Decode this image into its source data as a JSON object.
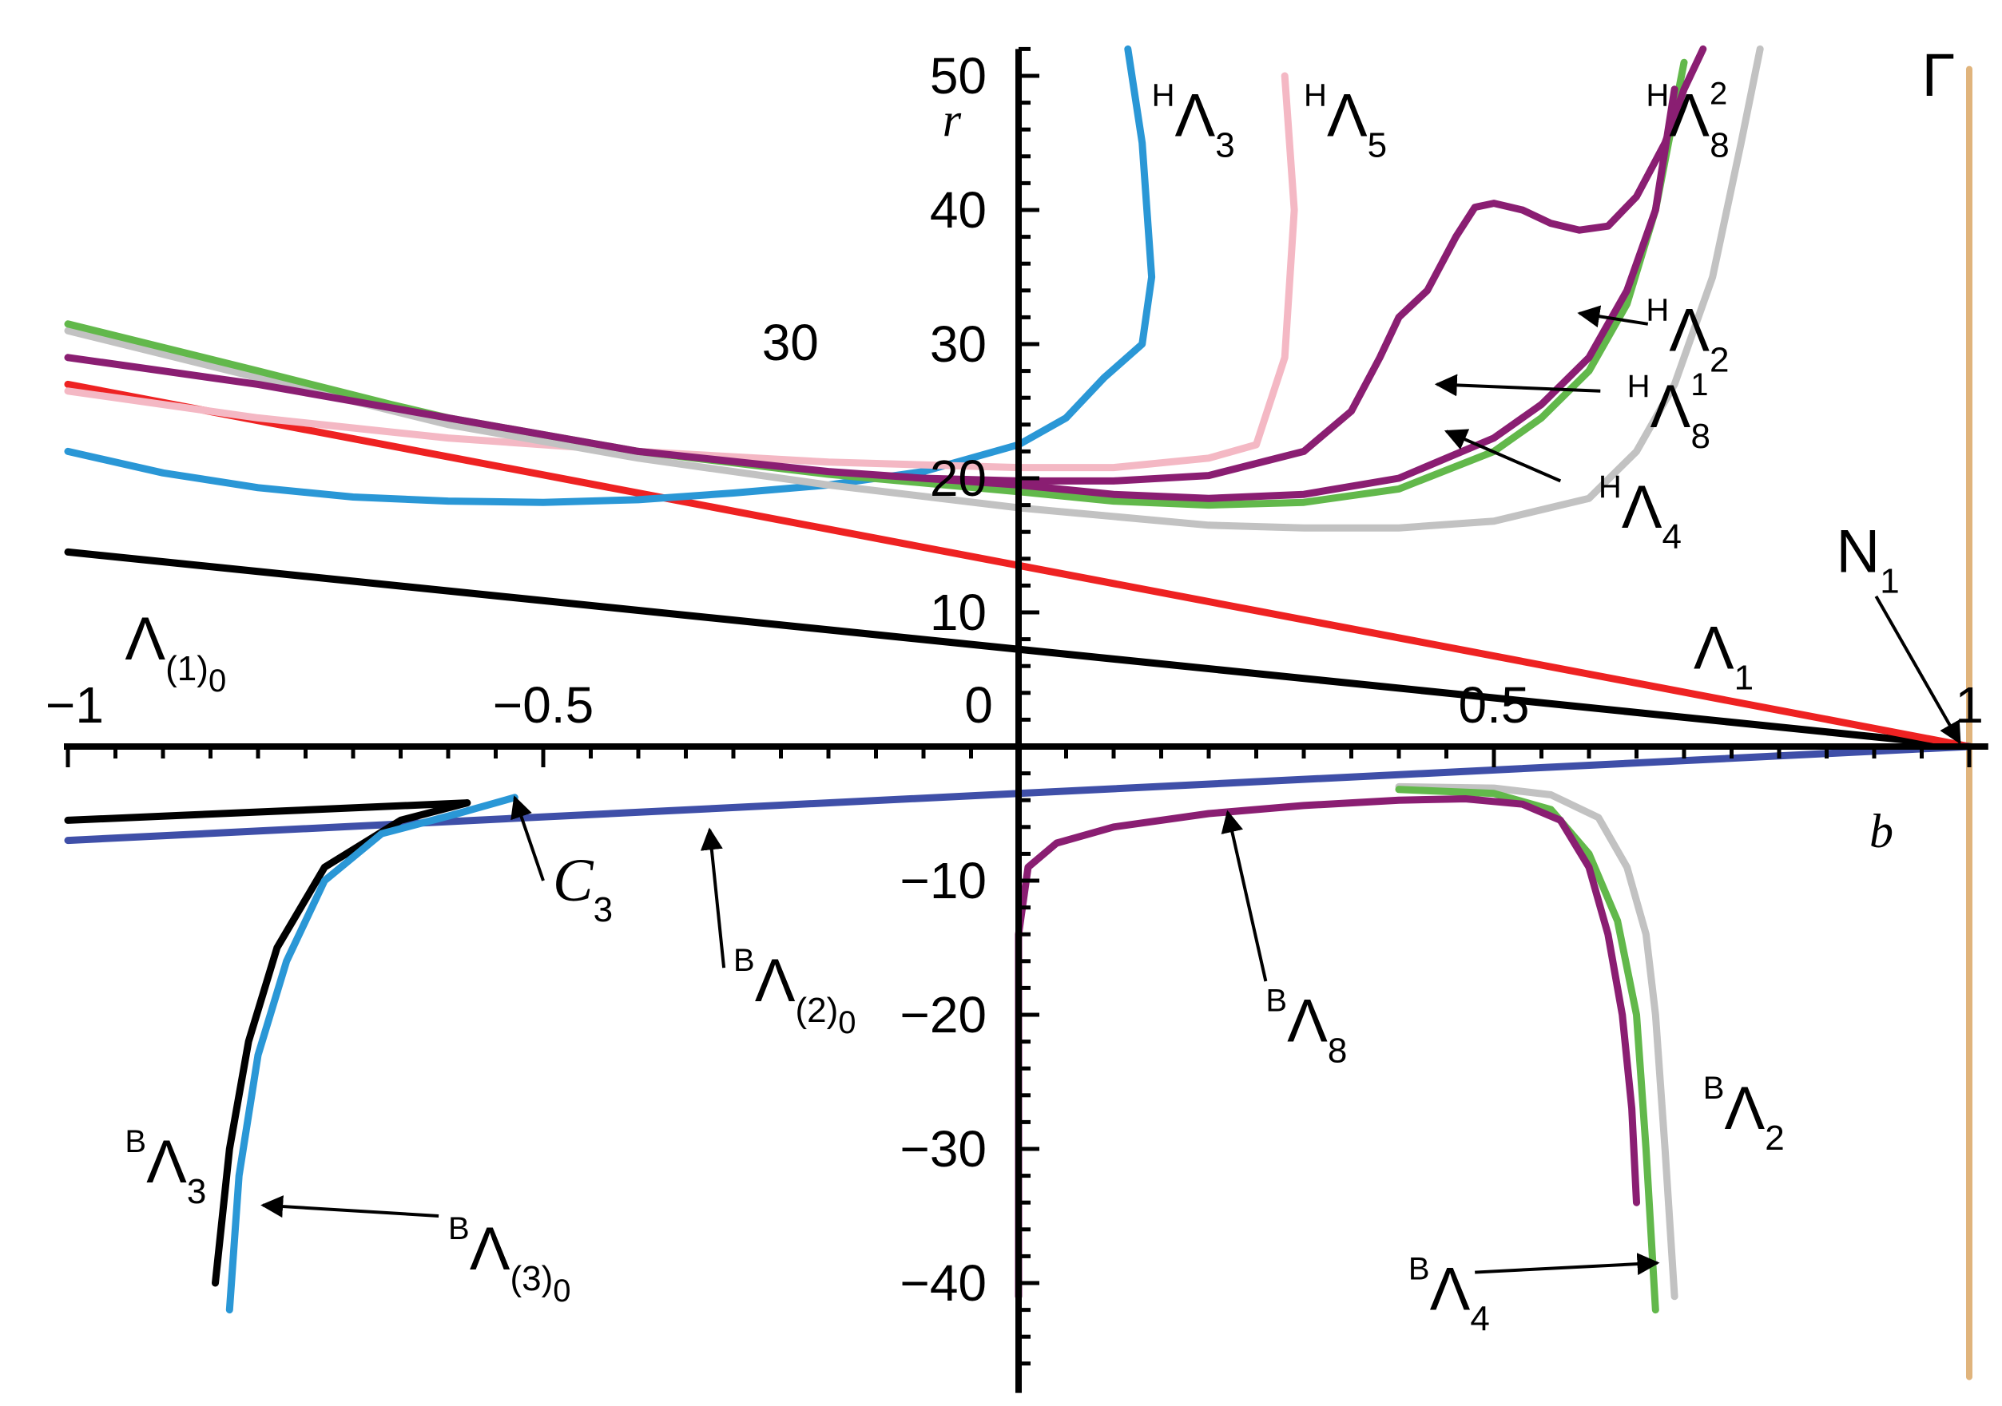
{
  "chart_data": {
    "type": "line",
    "xlabel": "b",
    "ylabel": "r",
    "xlim": [
      -1,
      1.02
    ],
    "ylim": [
      -47,
      52
    ],
    "x_ticks": [
      {
        "v": -1,
        "t": "-1"
      },
      {
        "v": -0.5,
        "t": "-0.5"
      },
      {
        "v": 0,
        "t": "0"
      },
      {
        "v": 0.5,
        "t": "0.5"
      },
      {
        "v": 1,
        "t": "1"
      }
    ],
    "y_ticks": [
      {
        "v": -40,
        "t": "-40"
      },
      {
        "v": -30,
        "t": "-30"
      },
      {
        "v": -20,
        "t": "-20"
      },
      {
        "v": -10,
        "t": "-10"
      },
      {
        "v": 10,
        "t": "10"
      },
      {
        "v": 20,
        "t": "20"
      },
      {
        "v": 30,
        "t": "30"
      },
      {
        "v": 40,
        "t": "40"
      },
      {
        "v": 50,
        "t": "50"
      }
    ],
    "colors": {
      "black": "#000000",
      "red": "#ee2222",
      "blue": "#2a97d6",
      "pink": "#f4b8c4",
      "green": "#62b84b",
      "gray": "#c2c2c2",
      "purple": "#8a1e72",
      "navy": "#3f4fa8",
      "tan": "#e0b47c"
    },
    "series": [
      {
        "color": "black",
        "points": [
          [
            -1,
            14.5
          ],
          [
            1,
            0
          ]
        ]
      },
      {
        "color": "red",
        "points": [
          [
            -1,
            27
          ],
          [
            1,
            0
          ]
        ]
      },
      {
        "color": "navy",
        "points": [
          [
            -1,
            -7
          ],
          [
            1,
            0
          ]
        ]
      },
      {
        "color": "tan",
        "points": [
          [
            1,
            50.5
          ],
          [
            1,
            -47
          ]
        ]
      },
      {
        "color": "blue",
        "points": [
          [
            -1,
            22
          ],
          [
            -0.9,
            20.4
          ],
          [
            -0.8,
            19.3
          ],
          [
            -0.7,
            18.6
          ],
          [
            -0.6,
            18.3
          ],
          [
            -0.5,
            18.2
          ],
          [
            -0.4,
            18.4
          ],
          [
            -0.3,
            18.9
          ],
          [
            -0.2,
            19.5
          ],
          [
            -0.1,
            20.5
          ],
          [
            0,
            22.5
          ],
          [
            0.05,
            24.5
          ],
          [
            0.09,
            27.5
          ],
          [
            0.13,
            30
          ],
          [
            0.14,
            35
          ],
          [
            0.13,
            45
          ],
          [
            0.115,
            52
          ]
        ]
      },
      {
        "color": "pink",
        "points": [
          [
            -1,
            26.5
          ],
          [
            -0.8,
            24.5
          ],
          [
            -0.6,
            23
          ],
          [
            -0.4,
            22
          ],
          [
            -0.2,
            21.2
          ],
          [
            0,
            20.8
          ],
          [
            0.1,
            20.8
          ],
          [
            0.2,
            21.5
          ],
          [
            0.25,
            22.5
          ],
          [
            0.28,
            29
          ],
          [
            0.29,
            40
          ],
          [
            0.28,
            50
          ]
        ]
      },
      {
        "color": "gray",
        "points": [
          [
            -1,
            31
          ],
          [
            -0.8,
            27.5
          ],
          [
            -0.6,
            24
          ],
          [
            -0.4,
            21.5
          ],
          [
            -0.2,
            19.5
          ],
          [
            0,
            17.8
          ],
          [
            0.2,
            16.5
          ],
          [
            0.3,
            16.3
          ],
          [
            0.4,
            16.3
          ],
          [
            0.5,
            16.8
          ],
          [
            0.6,
            18.5
          ],
          [
            0.65,
            22
          ],
          [
            0.69,
            27
          ],
          [
            0.73,
            35
          ],
          [
            0.76,
            45
          ],
          [
            0.78,
            52
          ]
        ]
      },
      {
        "color": "green",
        "points": [
          [
            -1,
            31.5
          ],
          [
            -0.8,
            28
          ],
          [
            -0.66,
            25.5
          ],
          [
            -0.6,
            24.5
          ],
          [
            -0.4,
            22
          ],
          [
            -0.2,
            20.3
          ],
          [
            0,
            19
          ],
          [
            0.1,
            18.3
          ],
          [
            0.2,
            18
          ],
          [
            0.3,
            18.2
          ],
          [
            0.4,
            19.2
          ],
          [
            0.5,
            22
          ],
          [
            0.55,
            24.5
          ],
          [
            0.6,
            28
          ],
          [
            0.64,
            33
          ],
          [
            0.67,
            40
          ],
          [
            0.7,
            51
          ]
        ]
      },
      {
        "color": "purple",
        "points": [
          [
            -1,
            29
          ],
          [
            -0.8,
            27
          ],
          [
            -0.6,
            24.5
          ],
          [
            -0.4,
            22
          ],
          [
            -0.2,
            20.5
          ],
          [
            0,
            19.5
          ],
          [
            0.1,
            18.8
          ],
          [
            0.2,
            18.5
          ],
          [
            0.3,
            18.8
          ],
          [
            0.4,
            20
          ],
          [
            0.5,
            23
          ],
          [
            0.55,
            25.5
          ],
          [
            0.6,
            29
          ],
          [
            0.64,
            34
          ],
          [
            0.67,
            40
          ],
          [
            0.69,
            49
          ]
        ]
      },
      {
        "color": "purple",
        "points": [
          [
            -0.1,
            20
          ],
          [
            0,
            19.8
          ],
          [
            0.1,
            19.8
          ],
          [
            0.2,
            20.2
          ],
          [
            0.3,
            22
          ],
          [
            0.35,
            25
          ],
          [
            0.38,
            29
          ],
          [
            0.4,
            32
          ],
          [
            0.43,
            34
          ],
          [
            0.46,
            38
          ],
          [
            0.48,
            40.2
          ],
          [
            0.5,
            40.5
          ],
          [
            0.53,
            40
          ],
          [
            0.56,
            39
          ],
          [
            0.59,
            38.5
          ],
          [
            0.62,
            38.8
          ],
          [
            0.65,
            41
          ],
          [
            0.68,
            45
          ],
          [
            0.7,
            49
          ],
          [
            0.72,
            52
          ]
        ]
      },
      {
        "color": "black",
        "points": [
          [
            -1,
            -5.5
          ],
          [
            -0.58,
            -4.2
          ]
        ]
      },
      {
        "color": "black",
        "points": [
          [
            -0.58,
            -4.2
          ],
          [
            -0.65,
            -5.5
          ],
          [
            -0.73,
            -9
          ],
          [
            -0.78,
            -15
          ],
          [
            -0.81,
            -22
          ],
          [
            -0.83,
            -30
          ],
          [
            -0.845,
            -40
          ]
        ]
      },
      {
        "color": "blue",
        "points": [
          [
            -0.53,
            -3.8
          ],
          [
            -0.59,
            -5
          ],
          [
            -0.67,
            -6.5
          ],
          [
            -0.73,
            -10
          ],
          [
            -0.77,
            -16
          ],
          [
            -0.8,
            -23
          ],
          [
            -0.82,
            -32
          ],
          [
            -0.83,
            -42
          ]
        ]
      },
      {
        "color": "gray",
        "points": [
          [
            0.4,
            -3
          ],
          [
            0.5,
            -3.1
          ],
          [
            0.56,
            -3.6
          ],
          [
            0.61,
            -5.3
          ],
          [
            0.64,
            -9
          ],
          [
            0.66,
            -14
          ],
          [
            0.67,
            -20
          ],
          [
            0.68,
            -30
          ],
          [
            0.69,
            -41
          ]
        ]
      },
      {
        "color": "green",
        "points": [
          [
            0.4,
            -3.2
          ],
          [
            0.5,
            -3.5
          ],
          [
            0.56,
            -4.7
          ],
          [
            0.6,
            -8
          ],
          [
            0.63,
            -13
          ],
          [
            0.65,
            -20
          ],
          [
            0.66,
            -30
          ],
          [
            0.67,
            -42
          ]
        ]
      },
      {
        "color": "purple",
        "points": [
          [
            0,
            -41
          ],
          [
            0,
            -14
          ],
          [
            0.01,
            -9
          ],
          [
            0.04,
            -7.2
          ],
          [
            0.1,
            -6
          ],
          [
            0.2,
            -5
          ],
          [
            0.3,
            -4.4
          ],
          [
            0.4,
            -4
          ],
          [
            0.47,
            -3.9
          ],
          [
            0.53,
            -4.3
          ],
          [
            0.57,
            -5.5
          ],
          [
            0.6,
            -9
          ],
          [
            0.62,
            -14
          ],
          [
            0.635,
            -20
          ],
          [
            0.645,
            -27
          ],
          [
            0.65,
            -34
          ]
        ]
      }
    ],
    "labels": [
      {
        "main": "Λ",
        "sub": "(1)",
        "subsub": "0",
        "x": -0.94,
        "y": 6.5
      },
      {
        "main": "Λ",
        "sub": "1",
        "x": 0.71,
        "y": 5.8
      },
      {
        "sup": "H",
        "main": "Λ",
        "sub": "3",
        "x": 0.14,
        "y": 45.5
      },
      {
        "sup": "H",
        "main": "Λ",
        "sub": "5",
        "x": 0.3,
        "y": 45.5
      },
      {
        "sup": "H",
        "main": "Λ",
        "sub": "8",
        "sup2": "2",
        "x": 0.66,
        "y": 45.5
      },
      {
        "sup": "H",
        "main": "Λ",
        "sub": "2",
        "x": 0.66,
        "y": 29.5
      },
      {
        "sup": "H",
        "main": "Λ",
        "sub": "8",
        "sup2": "1",
        "x": 0.64,
        "y": 23.8
      },
      {
        "sup": "H",
        "main": "Λ",
        "sub": "4",
        "x": 0.61,
        "y": 16.3
      },
      {
        "sup": "B",
        "main": "Λ",
        "sub": "(2)",
        "subsub": "0",
        "x": -0.3,
        "y": -19
      },
      {
        "sup": "B",
        "main": "Λ",
        "sub": "8",
        "x": 0.26,
        "y": -22
      },
      {
        "sup": "B",
        "main": "Λ",
        "sub": "2",
        "x": 0.72,
        "y": -28.5
      },
      {
        "sup": "B",
        "main": "Λ",
        "sub": "4",
        "x": 0.41,
        "y": -42
      },
      {
        "sup": "B",
        "main": "Λ",
        "sub": "3",
        "x": -0.94,
        "y": -32.5
      },
      {
        "sup": "B",
        "main": "Λ",
        "sub": "(3)",
        "subsub": "0",
        "x": -0.6,
        "y": -39
      },
      {
        "main": "Γ",
        "x": 0.95,
        "y": 48.5
      },
      {
        "main": "N",
        "sub": "1",
        "x": 0.86,
        "y": 13
      },
      {
        "main": "C",
        "sub": "3",
        "x": -0.49,
        "y": -11.5,
        "italic": true
      },
      {
        "main": "30",
        "x": -0.27,
        "y": 28.8,
        "plain": true
      }
    ],
    "arrows": [
      {
        "from": [
          0.662,
          31.5
        ],
        "to": [
          0.59,
          32.3
        ]
      },
      {
        "from": [
          0.612,
          26.5
        ],
        "to": [
          0.44,
          27
        ]
      },
      {
        "from": [
          0.57,
          19.8
        ],
        "to": [
          0.45,
          23.5
        ]
      },
      {
        "from": [
          0.902,
          11.2
        ],
        "to": [
          0.99,
          0.3
        ]
      },
      {
        "from": [
          -0.5,
          -10
        ],
        "to": [
          -0.53,
          -3.8
        ]
      },
      {
        "from": [
          -0.31,
          -16.5
        ],
        "to": [
          -0.325,
          -6.2
        ]
      },
      {
        "from": [
          0.26,
          -17.5
        ],
        "to": [
          0.22,
          -4.9
        ]
      },
      {
        "from": [
          0.48,
          -39.2
        ],
        "to": [
          0.672,
          -38.5
        ]
      },
      {
        "from": [
          -0.61,
          -35
        ],
        "to": [
          -0.795,
          -34.2
        ]
      }
    ]
  }
}
